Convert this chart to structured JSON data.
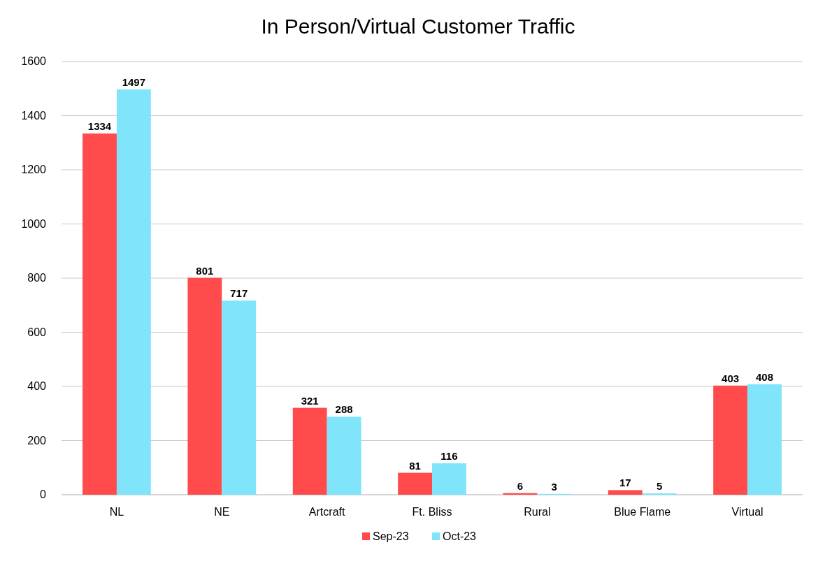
{
  "chart_data": {
    "type": "bar",
    "title": "In Person/Virtual Customer Traffic",
    "categories": [
      "NL",
      "NE",
      "Artcraft",
      "Ft. Bliss",
      "Rural",
      "Blue Flame",
      "Virtual"
    ],
    "series": [
      {
        "name": "Sep-23",
        "color": "#ff4b4b",
        "values": [
          1334,
          801,
          321,
          81,
          6,
          17,
          403
        ]
      },
      {
        "name": "Oct-23",
        "color": "#80e4fb",
        "values": [
          1497,
          717,
          288,
          116,
          3,
          5,
          408
        ]
      }
    ],
    "ylim": [
      0,
      1600
    ],
    "yticks": [
      0,
      200,
      400,
      600,
      800,
      1000,
      1200,
      1400,
      1600
    ],
    "grid": "y",
    "legend": "bottom",
    "data_labels": true
  }
}
